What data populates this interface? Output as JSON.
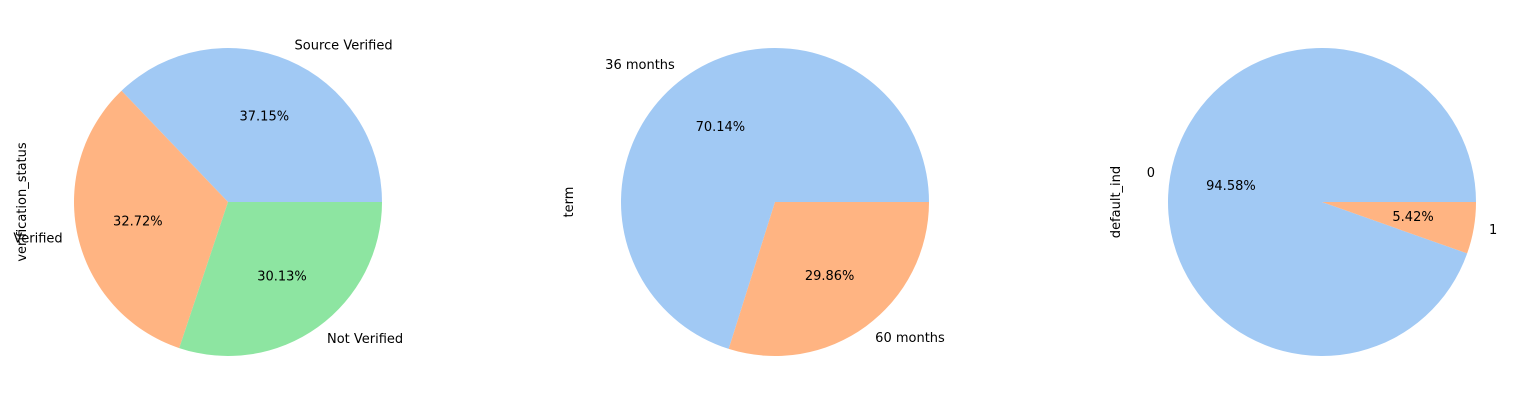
{
  "chart_data": [
    {
      "type": "pie",
      "ylabel": "verification_status",
      "labels": [
        "Source Verified",
        "Verified",
        "Not Verified"
      ],
      "values": [
        37.15,
        32.72,
        30.13
      ],
      "pct_labels": [
        "37.15%",
        "32.72%",
        "30.13%"
      ],
      "colors": [
        "#a1c9f4",
        "#ffb482",
        "#8de5a1"
      ],
      "start_angle_deg": 0,
      "direction": "counterclockwise"
    },
    {
      "type": "pie",
      "ylabel": "term",
      "labels": [
        "36 months",
        "60 months"
      ],
      "values": [
        70.14,
        29.86
      ],
      "pct_labels": [
        "70.14%",
        "29.86%"
      ],
      "colors": [
        "#a1c9f4",
        "#ffb482"
      ],
      "start_angle_deg": 0,
      "direction": "counterclockwise"
    },
    {
      "type": "pie",
      "ylabel": "default_ind",
      "labels": [
        "0",
        "1"
      ],
      "values": [
        94.58,
        5.42
      ],
      "pct_labels": [
        "94.58%",
        "5.42%"
      ],
      "colors": [
        "#a1c9f4",
        "#ffb482"
      ],
      "start_angle_deg": 0,
      "direction": "counterclockwise"
    }
  ]
}
